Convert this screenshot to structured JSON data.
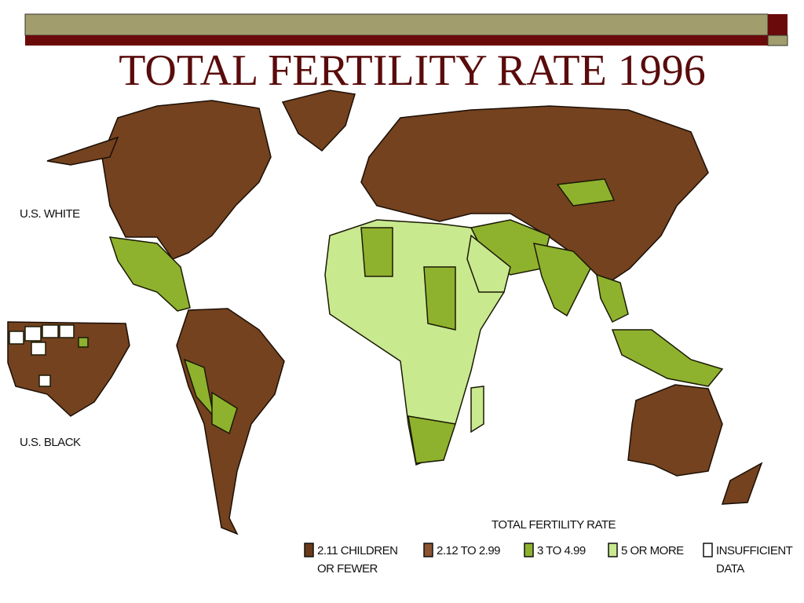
{
  "title": "TOTAL FERTILITY RATE  1996",
  "map_labels": [
    "U.S. WHITE",
    "U.S. BLACK"
  ],
  "legend": {
    "title": "TOTAL FERTILITY RATE",
    "items": [
      {
        "lines": [
          "2.11 CHILDREN",
          "OR FEWER"
        ],
        "color": "#6b3a1a"
      },
      {
        "lines": [
          "2.12 TO 2.99"
        ],
        "color": "#8a5530"
      },
      {
        "lines": [
          "3 TO 4.99"
        ],
        "color": "#8fb22e"
      },
      {
        "lines": [
          "5 OR MORE"
        ],
        "color": "#c9e98f"
      },
      {
        "lines": [
          "INSUFFICIENT",
          "DATA"
        ],
        "color": "#ffffff"
      }
    ]
  }
}
